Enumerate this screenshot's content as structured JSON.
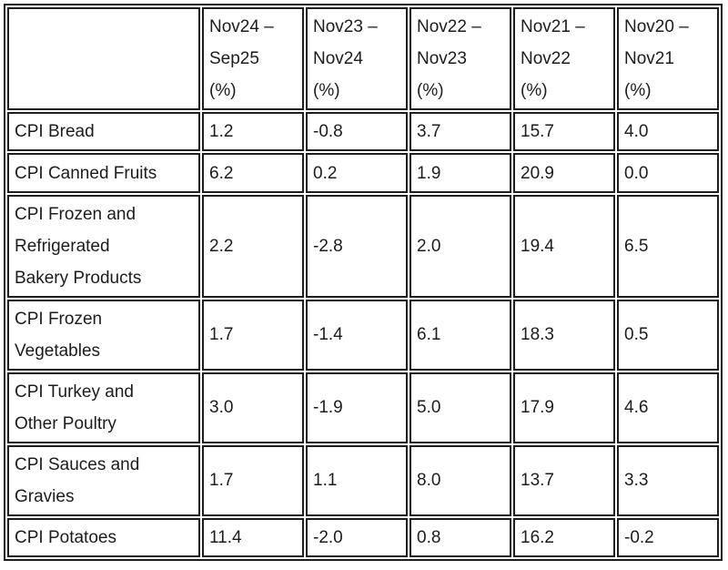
{
  "colors": {
    "border": "#1e1e1e",
    "text": "#1c1c1c",
    "background": "#ffffff"
  },
  "chart_data": {
    "type": "table",
    "title": "",
    "corner_label": "",
    "columns": [
      "Nov24 – Sep25 (%)",
      "Nov23 – Nov24 (%)",
      "Nov22 – Nov23 (%)",
      "Nov21 – Nov22 (%)",
      "Nov20 – Nov21 (%)"
    ],
    "rows": [
      {
        "label": "CPI Bread",
        "values": [
          "1.2",
          "-0.8",
          "3.7",
          "15.7",
          "4.0"
        ]
      },
      {
        "label": "CPI Canned Fruits",
        "values": [
          "6.2",
          "0.2",
          "1.9",
          "20.9",
          "0.0"
        ]
      },
      {
        "label": "CPI Frozen and Refrigerated Bakery Products",
        "values": [
          "2.2",
          "-2.8",
          "2.0",
          "19.4",
          "6.5"
        ]
      },
      {
        "label": "CPI Frozen Vegetables",
        "values": [
          "1.7",
          "-1.4",
          "6.1",
          "18.3",
          "0.5"
        ]
      },
      {
        "label": "CPI Turkey and Other Poultry",
        "values": [
          "3.0",
          "-1.9",
          "5.0",
          "17.9",
          "4.6"
        ]
      },
      {
        "label": "CPI Sauces and Gravies",
        "values": [
          "1.7",
          "1.1",
          "8.0",
          "13.7",
          "3.3"
        ]
      },
      {
        "label": "CPI Potatoes",
        "values": [
          "11.4",
          "-2.0",
          "0.8",
          "16.2",
          "-0.2"
        ]
      }
    ]
  }
}
